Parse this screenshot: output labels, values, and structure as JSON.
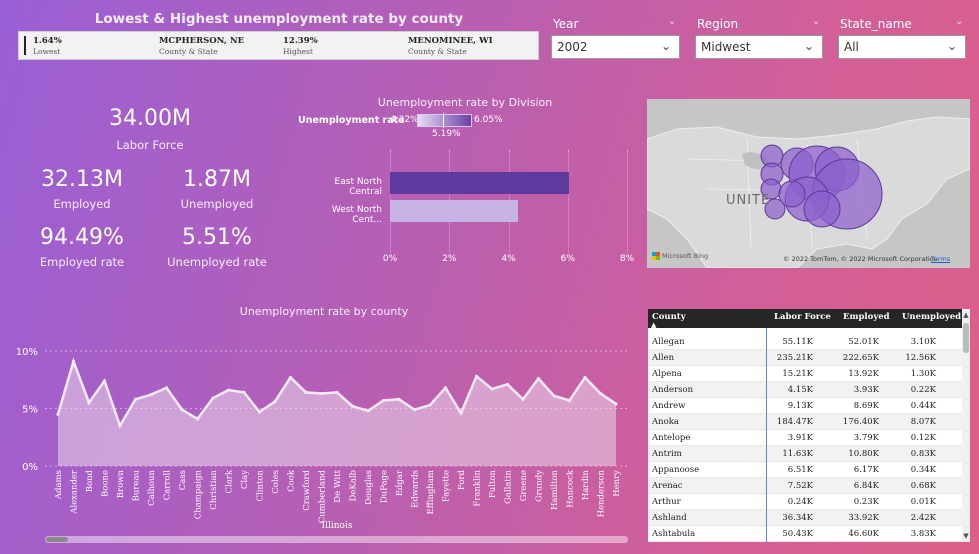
{
  "header": {
    "title": "Lowest & Highest unemployment rate by county",
    "lowest": {
      "rate": "1.64%",
      "rate_label": "Lowest",
      "county": "MCPHERSON, NE",
      "county_label": "County & State"
    },
    "highest": {
      "rate": "12.39%",
      "rate_label": "Highest",
      "county": "MENOMINEE, WI",
      "county_label": "County & State"
    }
  },
  "filters": {
    "year": {
      "label": "Year",
      "value": "2002"
    },
    "region": {
      "label": "Region",
      "value": "Midwest"
    },
    "state": {
      "label": "State_name",
      "value": "All"
    }
  },
  "kpis": {
    "labor_force": {
      "value": "34.00M",
      "label": "Labor Force"
    },
    "employed": {
      "value": "32.13M",
      "label": "Employed"
    },
    "unemployed": {
      "value": "1.87M",
      "label": "Unemployed"
    },
    "employed_rate": {
      "value": "94.49%",
      "label": "Employed rate"
    },
    "unemployed_rate": {
      "value": "5.51%",
      "label": "Unemployed rate"
    }
  },
  "division_chart": {
    "title": "Unemployment rate by Division",
    "legend_label": "Unemployment rate",
    "legend_min": "4.32%",
    "legend_max": "6.05%",
    "legend_mid": "5.19%",
    "colors": {
      "high": "#5e3a9e",
      "low": "#c7b3e6"
    }
  },
  "map": {
    "label_text": "UNITE",
    "logo_text": "Microsoft Bing",
    "attribution": "© 2022 TomTom, © 2022 Microsoft Corporation",
    "terms": "Terms"
  },
  "line_chart": {
    "title": "Unemployment rate by county"
  },
  "chart_data": [
    {
      "type": "bar",
      "orientation": "horizontal",
      "title": "Unemployment rate by Division",
      "categories": [
        "East North Central",
        "West North Cent..."
      ],
      "values": [
        6.05,
        4.32
      ],
      "xlim": [
        0,
        8
      ],
      "x_ticks": [
        "0%",
        "2%",
        "4%",
        "6%",
        "8%"
      ],
      "grid": true
    },
    {
      "type": "area",
      "title": "Unemployment rate by county",
      "xlabel": "Illinois",
      "ylim": [
        0,
        10
      ],
      "y_ticks": [
        "0%",
        "5%",
        "10%"
      ],
      "categories": [
        "Adams",
        "Alexander",
        "Bond",
        "Boone",
        "Brown",
        "Bureau",
        "Calhoun",
        "Carroll",
        "Cass",
        "Champaign",
        "Christian",
        "Clark",
        "Clay",
        "Clinton",
        "Coles",
        "Cook",
        "Crawford",
        "Cumberland",
        "De Witt",
        "DeKalb",
        "Douglas",
        "DuPage",
        "Edgar",
        "Edwards",
        "Effingham",
        "Fayette",
        "Ford",
        "Franklin",
        "Fulton",
        "Gallatin",
        "Greene",
        "Grundy",
        "Hamilton",
        "Hancock",
        "Hardin",
        "Henderson",
        "Henry"
      ],
      "values": [
        4.5,
        9.1,
        5.5,
        7.4,
        3.5,
        5.8,
        6.2,
        6.8,
        4.9,
        4.1,
        5.9,
        6.6,
        6.4,
        4.7,
        5.6,
        7.7,
        6.4,
        6.3,
        6.4,
        5.2,
        4.8,
        5.7,
        5.8,
        4.9,
        5.3,
        6.8,
        4.6,
        7.8,
        6.7,
        7.1,
        5.8,
        7.6,
        6.1,
        5.7,
        7.7,
        6.3,
        5.4
      ]
    }
  ],
  "table": {
    "columns": [
      "County",
      "Labor Force",
      "Employed",
      "Unemployed"
    ],
    "rows": [
      [
        "Allegan",
        "55.11K",
        "52.01K",
        "3.10K"
      ],
      [
        "Allen",
        "235.21K",
        "222.65K",
        "12.56K"
      ],
      [
        "Alpena",
        "15.21K",
        "13.92K",
        "1.30K"
      ],
      [
        "Anderson",
        "4.15K",
        "3.93K",
        "0.22K"
      ],
      [
        "Andrew",
        "9.13K",
        "8.69K",
        "0.44K"
      ],
      [
        "Anoka",
        "184.47K",
        "176.40K",
        "8.07K"
      ],
      [
        "Antelope",
        "3.91K",
        "3.79K",
        "0.12K"
      ],
      [
        "Antrim",
        "11.63K",
        "10.80K",
        "0.83K"
      ],
      [
        "Appanoose",
        "6.51K",
        "6.17K",
        "0.34K"
      ],
      [
        "Arenac",
        "7.52K",
        "6.84K",
        "0.68K"
      ],
      [
        "Arthur",
        "0.24K",
        "0.23K",
        "0.01K"
      ],
      [
        "Ashland",
        "36.34K",
        "33.92K",
        "2.42K"
      ],
      [
        "Ashtabula",
        "50.43K",
        "46.60K",
        "3.83K"
      ]
    ]
  }
}
